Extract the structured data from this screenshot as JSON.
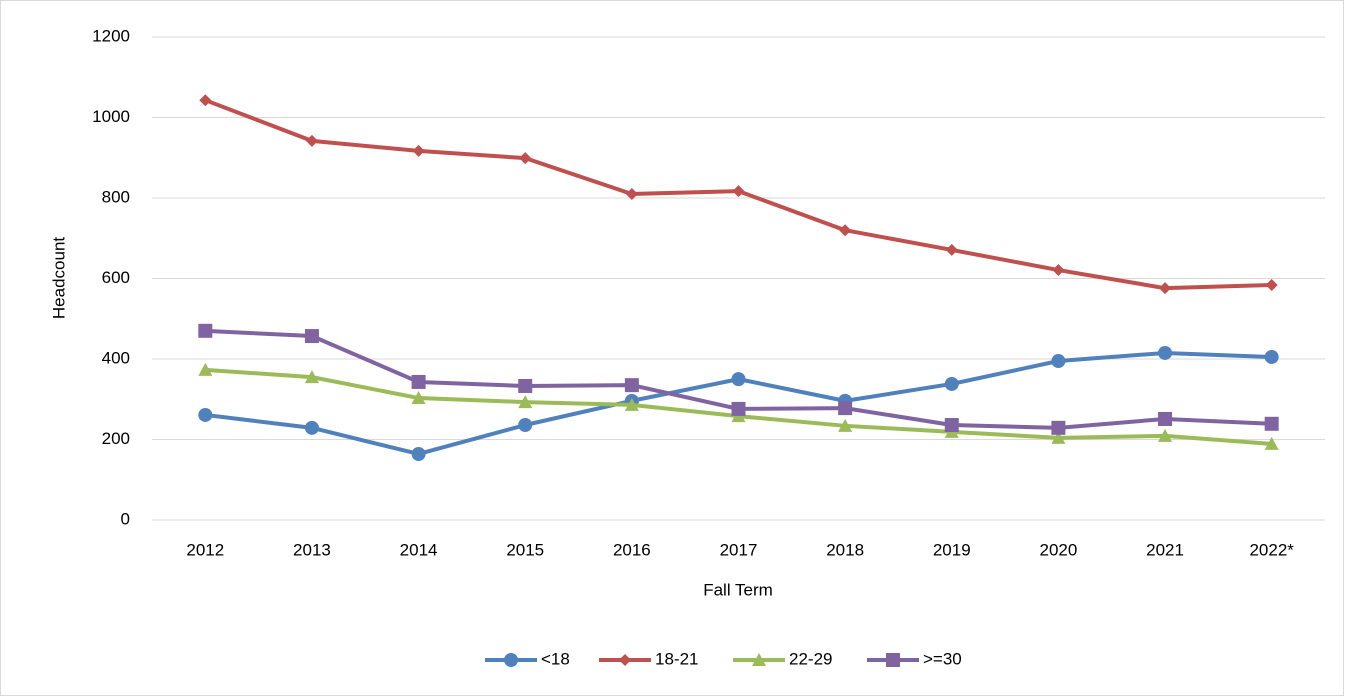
{
  "chart_data": {
    "type": "line",
    "x_label": "Fall Term",
    "y_label": "Headcount",
    "categories": [
      "2012",
      "2013",
      "2014",
      "2015",
      "2016",
      "2017",
      "2018",
      "2019",
      "2020",
      "2021",
      "2022*"
    ],
    "series": [
      {
        "name": "<18",
        "color": "#4f81bd",
        "marker": "circle",
        "values": [
          261,
          229,
          164,
          236,
          296,
          350,
          296,
          338,
          395,
          415,
          405
        ]
      },
      {
        "name": "18-21",
        "color": "#c0504d",
        "marker": "diamond",
        "values": [
          1043,
          942,
          917,
          899,
          810,
          817,
          720,
          671,
          621,
          576,
          584
        ]
      },
      {
        "name": "22-29",
        "color": "#9bbb59",
        "marker": "triangle",
        "values": [
          373,
          355,
          303,
          293,
          286,
          258,
          234,
          219,
          204,
          209,
          189
        ]
      },
      {
        "name": ">=30",
        "color": "#8064a2",
        "marker": "square",
        "values": [
          470,
          457,
          343,
          333,
          335,
          276,
          278,
          236,
          229,
          251,
          239
        ]
      }
    ],
    "ylim": [
      0,
      1200
    ],
    "yticks": [
      0,
      200,
      400,
      600,
      800,
      1000,
      1200
    ],
    "grid": true,
    "legend": "bottom"
  }
}
